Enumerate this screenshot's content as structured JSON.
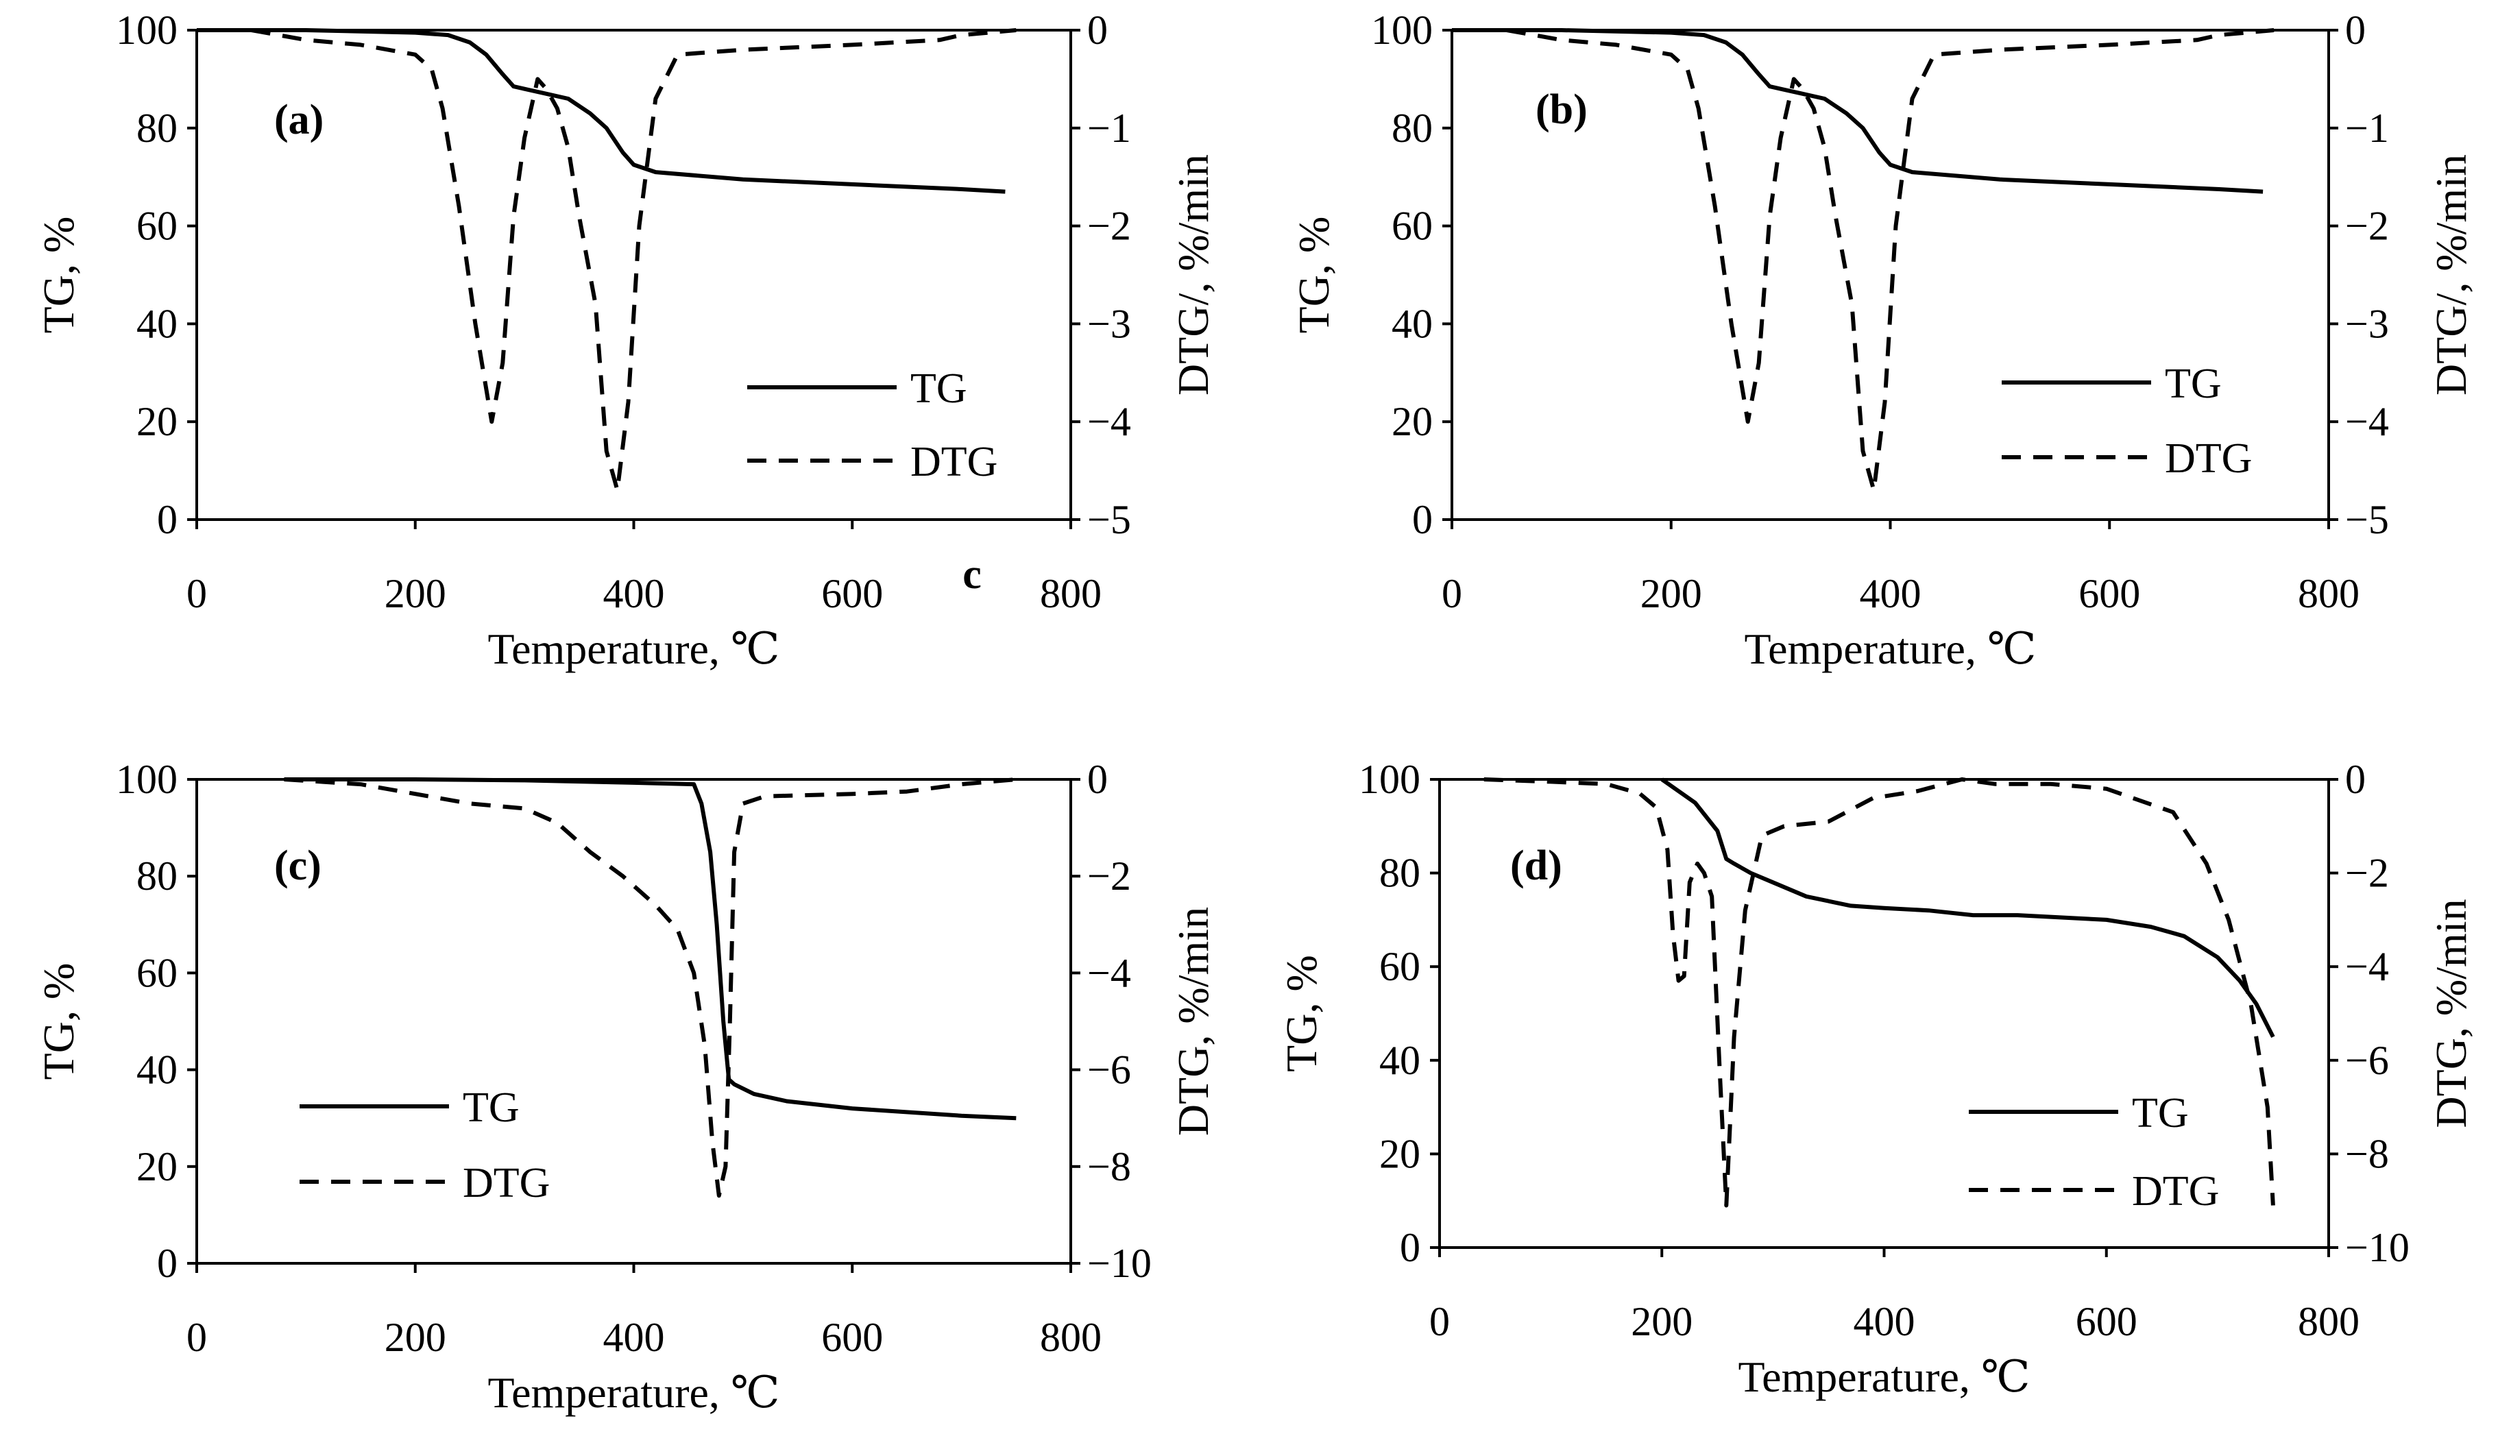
{
  "figure": {
    "stray_label": "c",
    "legend_tg": "TG",
    "legend_dtg": "DTG"
  },
  "chart_data": [
    {
      "type": "line",
      "panel_label": "(a)",
      "xlabel": "Temperature, ℃",
      "ylabel": "TG, %",
      "y2label": "DTG/, %/min",
      "xlim": [
        0,
        800
      ],
      "ylim": [
        0,
        100
      ],
      "y2lim": [
        -5,
        0
      ],
      "xticks": [
        0,
        200,
        400,
        600,
        800
      ],
      "yticks": [
        0,
        20,
        40,
        60,
        80,
        100
      ],
      "y2ticks": [
        -5,
        -4,
        -3,
        -2,
        -1,
        0
      ],
      "legend": [
        "TG",
        "DTG"
      ],
      "series": [
        {
          "name": "TG",
          "axis": "left",
          "x": [
            0,
            100,
            200,
            230,
            250,
            265,
            280,
            290,
            300,
            320,
            340,
            360,
            375,
            390,
            400,
            420,
            500,
            600,
            700,
            740
          ],
          "y": [
            100,
            100,
            99.5,
            99,
            97.5,
            95,
            91,
            88.5,
            88,
            87,
            86,
            83,
            80,
            75,
            72.5,
            71,
            69.5,
            68.5,
            67.5,
            67
          ]
        },
        {
          "name": "DTG",
          "axis": "right",
          "x": [
            50,
            100,
            150,
            200,
            215,
            225,
            240,
            255,
            270,
            280,
            290,
            300,
            312,
            320,
            330,
            340,
            350,
            365,
            375,
            385,
            395,
            405,
            420,
            440,
            500,
            600,
            680,
            700,
            750
          ],
          "y": [
            0,
            -0.1,
            -0.15,
            -0.25,
            -0.4,
            -0.8,
            -1.8,
            -3.0,
            -4.0,
            -3.4,
            -1.9,
            -1.1,
            -0.5,
            -0.6,
            -0.8,
            -1.2,
            -1.9,
            -2.8,
            -4.3,
            -4.7,
            -3.8,
            -2.0,
            -0.7,
            -0.25,
            -0.2,
            -0.15,
            -0.1,
            -0.05,
            0
          ]
        }
      ]
    },
    {
      "type": "line",
      "panel_label": "(b)",
      "xlabel": "Temperature, ℃",
      "ylabel": "TG, %",
      "y2label": "DTG/, %/min",
      "xlim": [
        0,
        800
      ],
      "ylim": [
        0,
        100
      ],
      "y2lim": [
        -5,
        0
      ],
      "xticks": [
        0,
        200,
        400,
        600,
        800
      ],
      "yticks": [
        0,
        20,
        40,
        60,
        80,
        100
      ],
      "y2ticks": [
        -5,
        -4,
        -3,
        -2,
        -1,
        0
      ],
      "legend": [
        "TG",
        "DTG"
      ],
      "series": [
        {
          "name": "TG",
          "axis": "left",
          "x": [
            0,
            100,
            200,
            230,
            250,
            265,
            280,
            290,
            300,
            320,
            340,
            360,
            375,
            390,
            400,
            420,
            500,
            600,
            700,
            740
          ],
          "y": [
            100,
            100,
            99.5,
            99,
            97.5,
            95,
            91,
            88.5,
            88,
            87,
            86,
            83,
            80,
            75,
            72.5,
            71,
            69.5,
            68.5,
            67.5,
            67
          ]
        },
        {
          "name": "DTG",
          "axis": "right",
          "x": [
            50,
            100,
            150,
            200,
            215,
            225,
            240,
            255,
            270,
            280,
            290,
            300,
            312,
            320,
            330,
            340,
            350,
            365,
            375,
            385,
            395,
            405,
            420,
            440,
            500,
            600,
            680,
            700,
            750
          ],
          "y": [
            0,
            -0.1,
            -0.15,
            -0.25,
            -0.4,
            -0.8,
            -1.8,
            -3.0,
            -4.0,
            -3.4,
            -1.9,
            -1.1,
            -0.5,
            -0.6,
            -0.8,
            -1.2,
            -1.9,
            -2.8,
            -4.3,
            -4.7,
            -3.8,
            -2.0,
            -0.7,
            -0.25,
            -0.2,
            -0.15,
            -0.1,
            -0.05,
            0
          ]
        }
      ]
    },
    {
      "type": "line",
      "panel_label": "(c)",
      "xlabel": "Temperature, ℃",
      "ylabel": "TG, %",
      "y2label": "DTG, %/min",
      "xlim": [
        0,
        800
      ],
      "ylim": [
        0,
        100
      ],
      "y2lim": [
        -10,
        0
      ],
      "xticks": [
        0,
        200,
        400,
        600,
        800
      ],
      "yticks": [
        0,
        20,
        40,
        60,
        80,
        100
      ],
      "y2ticks": [
        -10,
        -8,
        -6,
        -4,
        -2,
        0
      ],
      "legend": [
        "TG",
        "DTG"
      ],
      "series": [
        {
          "name": "TG",
          "axis": "left",
          "x": [
            80,
            200,
            300,
            400,
            455,
            462,
            470,
            476,
            482,
            487,
            492,
            510,
            540,
            600,
            700,
            750
          ],
          "y": [
            100,
            100,
            99.8,
            99.3,
            99,
            95,
            85,
            70,
            50,
            38,
            37,
            35,
            33.5,
            32,
            30.5,
            30
          ]
        },
        {
          "name": "DTG",
          "axis": "right",
          "x": [
            80,
            150,
            200,
            250,
            300,
            330,
            360,
            390,
            420,
            440,
            455,
            465,
            472,
            478,
            484,
            488,
            492,
            500,
            520,
            600,
            650,
            700,
            750
          ],
          "y": [
            0,
            -0.1,
            -0.3,
            -0.5,
            -0.6,
            -0.9,
            -1.5,
            -2.0,
            -2.6,
            -3.1,
            -4.0,
            -5.5,
            -7.5,
            -8.6,
            -8.0,
            -5.0,
            -1.5,
            -0.5,
            -0.35,
            -0.3,
            -0.25,
            -0.1,
            0
          ]
        }
      ]
    },
    {
      "type": "line",
      "panel_label": "(d)",
      "xlabel": "Temperature, ℃",
      "ylabel": "TG, %",
      "y2label": "DTG, %/min",
      "xlim": [
        0,
        800
      ],
      "ylim": [
        0,
        100
      ],
      "y2lim": [
        -10,
        0
      ],
      "xticks": [
        0,
        200,
        400,
        600,
        800
      ],
      "yticks": [
        0,
        20,
        40,
        60,
        80,
        100
      ],
      "y2ticks": [
        -10,
        -8,
        -6,
        -4,
        -2,
        0
      ],
      "legend": [
        "TG",
        "DTG"
      ],
      "series": [
        {
          "name": "TG",
          "axis": "left",
          "x": [
            200,
            230,
            250,
            258,
            265,
            280,
            300,
            330,
            370,
            400,
            440,
            480,
            520,
            560,
            600,
            640,
            670,
            700,
            720,
            735,
            750
          ],
          "y": [
            100,
            95,
            89,
            83,
            82,
            80,
            78,
            75,
            73,
            72.5,
            72,
            71,
            71,
            70.5,
            70,
            68.5,
            66.5,
            62,
            57,
            52,
            45
          ]
        },
        {
          "name": "DTG",
          "axis": "right",
          "x": [
            40,
            100,
            150,
            180,
            195,
            205,
            210,
            215,
            220,
            225,
            232,
            238,
            245,
            252,
            258,
            265,
            275,
            290,
            310,
            350,
            390,
            430,
            470,
            500,
            550,
            600,
            660,
            690,
            710,
            730,
            745,
            750
          ],
          "y": [
            0,
            -0.05,
            -0.1,
            -0.3,
            -0.6,
            -1.5,
            -3.3,
            -4.3,
            -4.2,
            -2.2,
            -1.8,
            -2.0,
            -2.5,
            -6.2,
            -9.1,
            -5.5,
            -2.8,
            -1.2,
            -1.0,
            -0.9,
            -0.4,
            -0.25,
            0,
            -0.1,
            -0.1,
            -0.2,
            -0.7,
            -1.8,
            -3.0,
            -4.8,
            -7.0,
            -9.1
          ]
        }
      ]
    }
  ]
}
